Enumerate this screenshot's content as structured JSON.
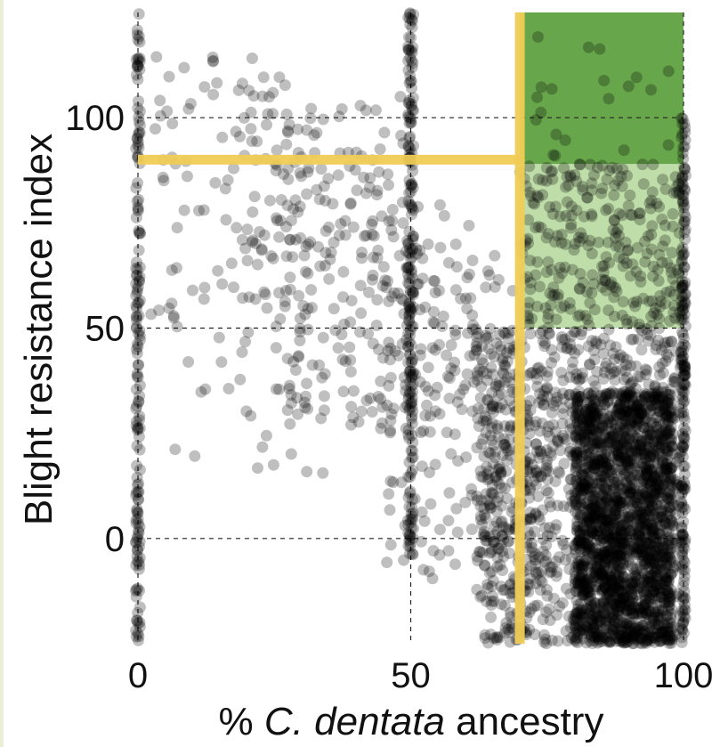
{
  "chart_data": {
    "type": "scatter",
    "title": "",
    "xlabel_parts": [
      "% ",
      "C. dentata",
      " ancestry"
    ],
    "ylabel": "Blight resistance index",
    "x_ticks": [
      "0",
      "50",
      "100"
    ],
    "y_ticks": [
      "0",
      "50",
      "100"
    ],
    "x_tick_values": [
      0,
      50,
      100
    ],
    "y_tick_values": [
      0,
      50,
      100
    ],
    "xlim": [
      0,
      100
    ],
    "ylim": [
      -25,
      125
    ],
    "grid": "dashed guides at x = 0, 50, 100 and y = 0, 50, 100",
    "marker_color": "#000000",
    "marker_opacity": 0.25,
    "threshold_color": "#f0cc55",
    "threshold_lines": [
      {
        "orientation": "vertical",
        "value": 70
      },
      {
        "orientation": "horizontal",
        "value": 90
      }
    ],
    "regions": [
      {
        "x": [
          70,
          100
        ],
        "y": [
          89,
          125
        ],
        "color": "#5a9e3c",
        "opacity": 0.92
      },
      {
        "x": [
          70,
          100
        ],
        "y": [
          50,
          89
        ],
        "color": "#6fb33f",
        "opacity": 0.45
      }
    ],
    "clusters": [
      {
        "x": [
          0,
          0
        ],
        "y": [
          -25,
          125
        ],
        "count": 160,
        "jitter_x": 0.4
      },
      {
        "x": [
          50,
          50
        ],
        "y": [
          -5,
          125
        ],
        "count": 190,
        "jitter_x": 0.5
      },
      {
        "x": [
          100,
          100
        ],
        "y": [
          -25,
          100
        ],
        "count": 180,
        "jitter_x": 0.4
      },
      {
        "x": [
          3,
          30
        ],
        "y": [
          50,
          115
        ],
        "count": 95
      },
      {
        "x": [
          20,
          50
        ],
        "y": [
          55,
          105
        ],
        "count": 110
      },
      {
        "x": [
          25,
          62
        ],
        "y": [
          25,
          80
        ],
        "count": 180
      },
      {
        "x": [
          45,
          70
        ],
        "y": [
          -10,
          70
        ],
        "count": 130
      },
      {
        "x": [
          2,
          35
        ],
        "y": [
          15,
          55
        ],
        "count": 35
      },
      {
        "x": [
          70,
          100
        ],
        "y": [
          50,
          89
        ],
        "count": 280
      },
      {
        "x": [
          70,
          100
        ],
        "y": [
          89,
          120
        ],
        "count": 20
      },
      {
        "x": [
          62,
          100
        ],
        "y": [
          -25,
          50
        ],
        "count": 900
      },
      {
        "x": [
          80,
          98
        ],
        "y": [
          -25,
          35
        ],
        "count": 1800
      },
      {
        "x": [
          64,
          76
        ],
        "y": [
          -25,
          40
        ],
        "count": 100
      }
    ]
  }
}
